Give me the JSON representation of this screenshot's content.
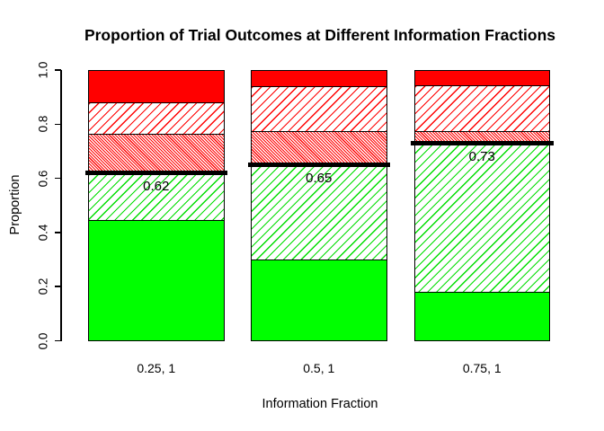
{
  "chart_data": {
    "type": "bar",
    "stacked": true,
    "title": "Proportion of Trial Outcomes at Different Information Fractions",
    "xlabel": "Information Fraction",
    "ylabel": "Proportion",
    "ylim": [
      0,
      1
    ],
    "yticks": [
      0.0,
      0.2,
      0.4,
      0.6,
      0.8,
      1.0
    ],
    "ytick_labels": [
      "0.0",
      "0.2",
      "0.4",
      "0.6",
      "0.8",
      "1.0"
    ],
    "grid": false,
    "legend": "none",
    "categories": [
      "0.25, 1",
      "0.5, 1",
      "0.75, 1"
    ],
    "series": [
      {
        "name": "green-solid",
        "pattern": "solid",
        "color": "#00FF00",
        "values": [
          0.445,
          0.3,
          0.18
        ]
      },
      {
        "name": "green-hatched",
        "pattern": "hatch-fwd",
        "color": "#00DD00",
        "values": [
          0.175,
          0.35,
          0.55
        ]
      },
      {
        "name": "red-dense-hatched",
        "pattern": "hatch-dense",
        "color": "#FF0000",
        "values": [
          0.145,
          0.125,
          0.045
        ]
      },
      {
        "name": "red-hatched",
        "pattern": "hatch-fwd",
        "color": "#FF0000",
        "values": [
          0.115,
          0.165,
          0.17
        ]
      },
      {
        "name": "red-solid",
        "pattern": "solid",
        "color": "#FF0000",
        "values": [
          0.12,
          0.06,
          0.055
        ]
      }
    ],
    "reference_lines": {
      "color": "#000000",
      "values": [
        0.62,
        0.65,
        0.73
      ],
      "labels": [
        "0.62",
        "0.65",
        "0.73"
      ]
    }
  }
}
